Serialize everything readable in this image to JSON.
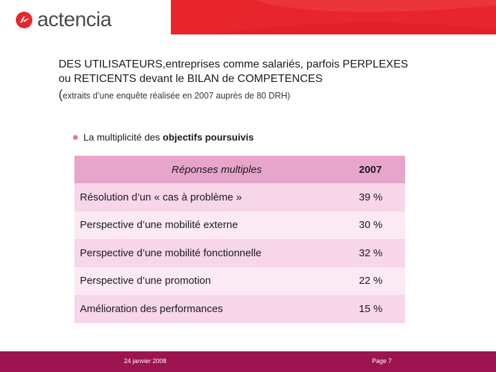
{
  "header": {
    "logo_text": "actencia",
    "brand_color": "#e8252c",
    "logo_icon": "actencia-logo-icon"
  },
  "title": {
    "line1": "DES UTILISATEURS,entreprises comme salariés, parfois PERPLEXES",
    "line2": "ou RETICENTS devant le BILAN de COMPETENCES",
    "subtitle_paren": "(",
    "subtitle_text": "extraits d’une enquête réalisée en 2007 auprès de 80 DRH)"
  },
  "bullet": {
    "text_prefix": "La multiplicité des ",
    "text_bold": "objectifs poursuivis",
    "dot_color": "#e07b87"
  },
  "table": {
    "headers": [
      "Réponses multiples",
      "2007"
    ],
    "rows": [
      [
        "Résolution d’un « cas à problème »",
        "39 %"
      ],
      [
        "Perspective d’une mobilité externe",
        "30 %"
      ],
      [
        "Perspective d’une mobilité fonctionnelle",
        "32 %"
      ],
      [
        "Perspective d’une promotion",
        "22 %"
      ],
      [
        "Amélioration des performances",
        "15 %"
      ]
    ],
    "header_color": "#e8a5cc",
    "row_color_a": "#f6d6e8",
    "row_color_b": "#fbeaf3"
  },
  "footer": {
    "date": "24 janvier 2008",
    "page": "Page 7",
    "color": "#9c1450"
  }
}
